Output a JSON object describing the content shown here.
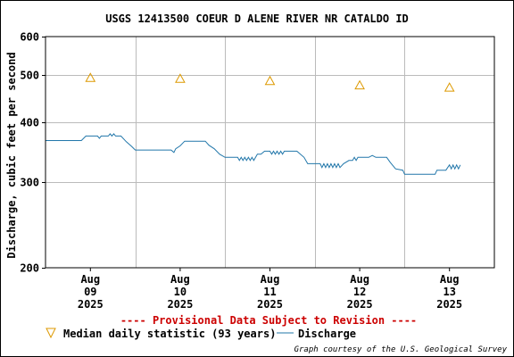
{
  "chart_data": {
    "type": "line",
    "title": "USGS 12413500 COEUR D ALENE RIVER NR CATALDO ID",
    "ylabel": "Discharge, cubic feet per second",
    "xlabel": "",
    "y_scale": "log",
    "ylim": [
      200,
      600
    ],
    "y_ticks": [
      {
        "value": 200,
        "label": "200"
      },
      {
        "value": 300,
        "label": "300"
      },
      {
        "value": 400,
        "label": "400"
      },
      {
        "value": 500,
        "label": "500"
      },
      {
        "value": 600,
        "label": "600"
      }
    ],
    "xlim": [
      8.5,
      13.5
    ],
    "x_ticks": [
      {
        "value": 9,
        "lines": [
          "Aug",
          "09",
          "2025"
        ]
      },
      {
        "value": 10,
        "lines": [
          "Aug",
          "10",
          "2025"
        ]
      },
      {
        "value": 11,
        "lines": [
          "Aug",
          "11",
          "2025"
        ]
      },
      {
        "value": 12,
        "lines": [
          "Aug",
          "12",
          "2025"
        ]
      },
      {
        "value": 13,
        "lines": [
          "Aug",
          "13",
          "2025"
        ]
      }
    ],
    "grid": true,
    "series": [
      {
        "name": "Median daily statistic (93 years)",
        "kind": "marker",
        "color": "#dd9900",
        "points": [
          [
            9.0,
            493
          ],
          [
            10.0,
            491
          ],
          [
            11.0,
            486
          ],
          [
            12.0,
            476
          ],
          [
            13.0,
            471
          ]
        ]
      },
      {
        "name": "Discharge",
        "kind": "line",
        "color": "#2277aa",
        "points": [
          [
            8.5,
            366
          ],
          [
            8.9,
            366
          ],
          [
            8.95,
            374
          ],
          [
            9.08,
            374
          ],
          [
            9.1,
            370
          ],
          [
            9.12,
            374
          ],
          [
            9.2,
            374
          ],
          [
            9.22,
            378
          ],
          [
            9.24,
            374
          ],
          [
            9.26,
            378
          ],
          [
            9.28,
            374
          ],
          [
            9.34,
            374
          ],
          [
            9.4,
            364
          ],
          [
            9.46,
            356
          ],
          [
            9.5,
            350
          ],
          [
            9.58,
            350
          ],
          [
            9.9,
            350
          ],
          [
            9.93,
            346
          ],
          [
            9.95,
            352
          ],
          [
            10.0,
            357
          ],
          [
            10.05,
            365
          ],
          [
            10.2,
            365
          ],
          [
            10.28,
            365
          ],
          [
            10.32,
            358
          ],
          [
            10.38,
            352
          ],
          [
            10.44,
            343
          ],
          [
            10.5,
            338
          ],
          [
            10.64,
            338
          ],
          [
            10.66,
            333
          ],
          [
            10.68,
            338
          ],
          [
            10.7,
            333
          ],
          [
            10.72,
            338
          ],
          [
            10.74,
            333
          ],
          [
            10.76,
            338
          ],
          [
            10.78,
            333
          ],
          [
            10.8,
            338
          ],
          [
            10.82,
            333
          ],
          [
            10.84,
            338
          ],
          [
            10.86,
            343
          ],
          [
            10.9,
            343
          ],
          [
            10.94,
            348
          ],
          [
            11.0,
            348
          ],
          [
            11.02,
            343
          ],
          [
            11.04,
            348
          ],
          [
            11.06,
            343
          ],
          [
            11.08,
            348
          ],
          [
            11.1,
            343
          ],
          [
            11.12,
            348
          ],
          [
            11.14,
            343
          ],
          [
            11.16,
            348
          ],
          [
            11.3,
            348
          ],
          [
            11.38,
            338
          ],
          [
            11.42,
            328
          ],
          [
            11.56,
            328
          ],
          [
            11.58,
            322
          ],
          [
            11.6,
            328
          ],
          [
            11.62,
            322
          ],
          [
            11.64,
            328
          ],
          [
            11.66,
            322
          ],
          [
            11.68,
            328
          ],
          [
            11.7,
            322
          ],
          [
            11.72,
            328
          ],
          [
            11.74,
            322
          ],
          [
            11.76,
            328
          ],
          [
            11.78,
            322
          ],
          [
            11.82,
            328
          ],
          [
            11.88,
            333
          ],
          [
            11.92,
            333
          ],
          [
            11.94,
            338
          ],
          [
            11.96,
            333
          ],
          [
            11.98,
            338
          ],
          [
            12.0,
            338
          ],
          [
            12.1,
            338
          ],
          [
            12.14,
            341
          ],
          [
            12.18,
            338
          ],
          [
            12.3,
            338
          ],
          [
            12.34,
            330
          ],
          [
            12.4,
            320
          ],
          [
            12.48,
            318
          ],
          [
            12.5,
            312
          ],
          [
            12.62,
            312
          ],
          [
            12.84,
            312
          ],
          [
            12.86,
            318
          ],
          [
            12.96,
            318
          ],
          [
            12.98,
            322
          ],
          [
            13.0,
            326
          ],
          [
            13.02,
            320
          ],
          [
            13.04,
            326
          ],
          [
            13.06,
            320
          ],
          [
            13.08,
            326
          ],
          [
            13.1,
            320
          ],
          [
            13.12,
            326
          ]
        ]
      }
    ]
  },
  "banner": "---- Provisional Data Subject to Revision ----",
  "legend": {
    "median_label": "Median daily statistic (93 years)",
    "discharge_label": "Discharge"
  },
  "credit": "Graph courtesy of the U.S. Geological Survey",
  "colors": {
    "grid": "#bbbbbb",
    "banner": "#cc0000"
  }
}
